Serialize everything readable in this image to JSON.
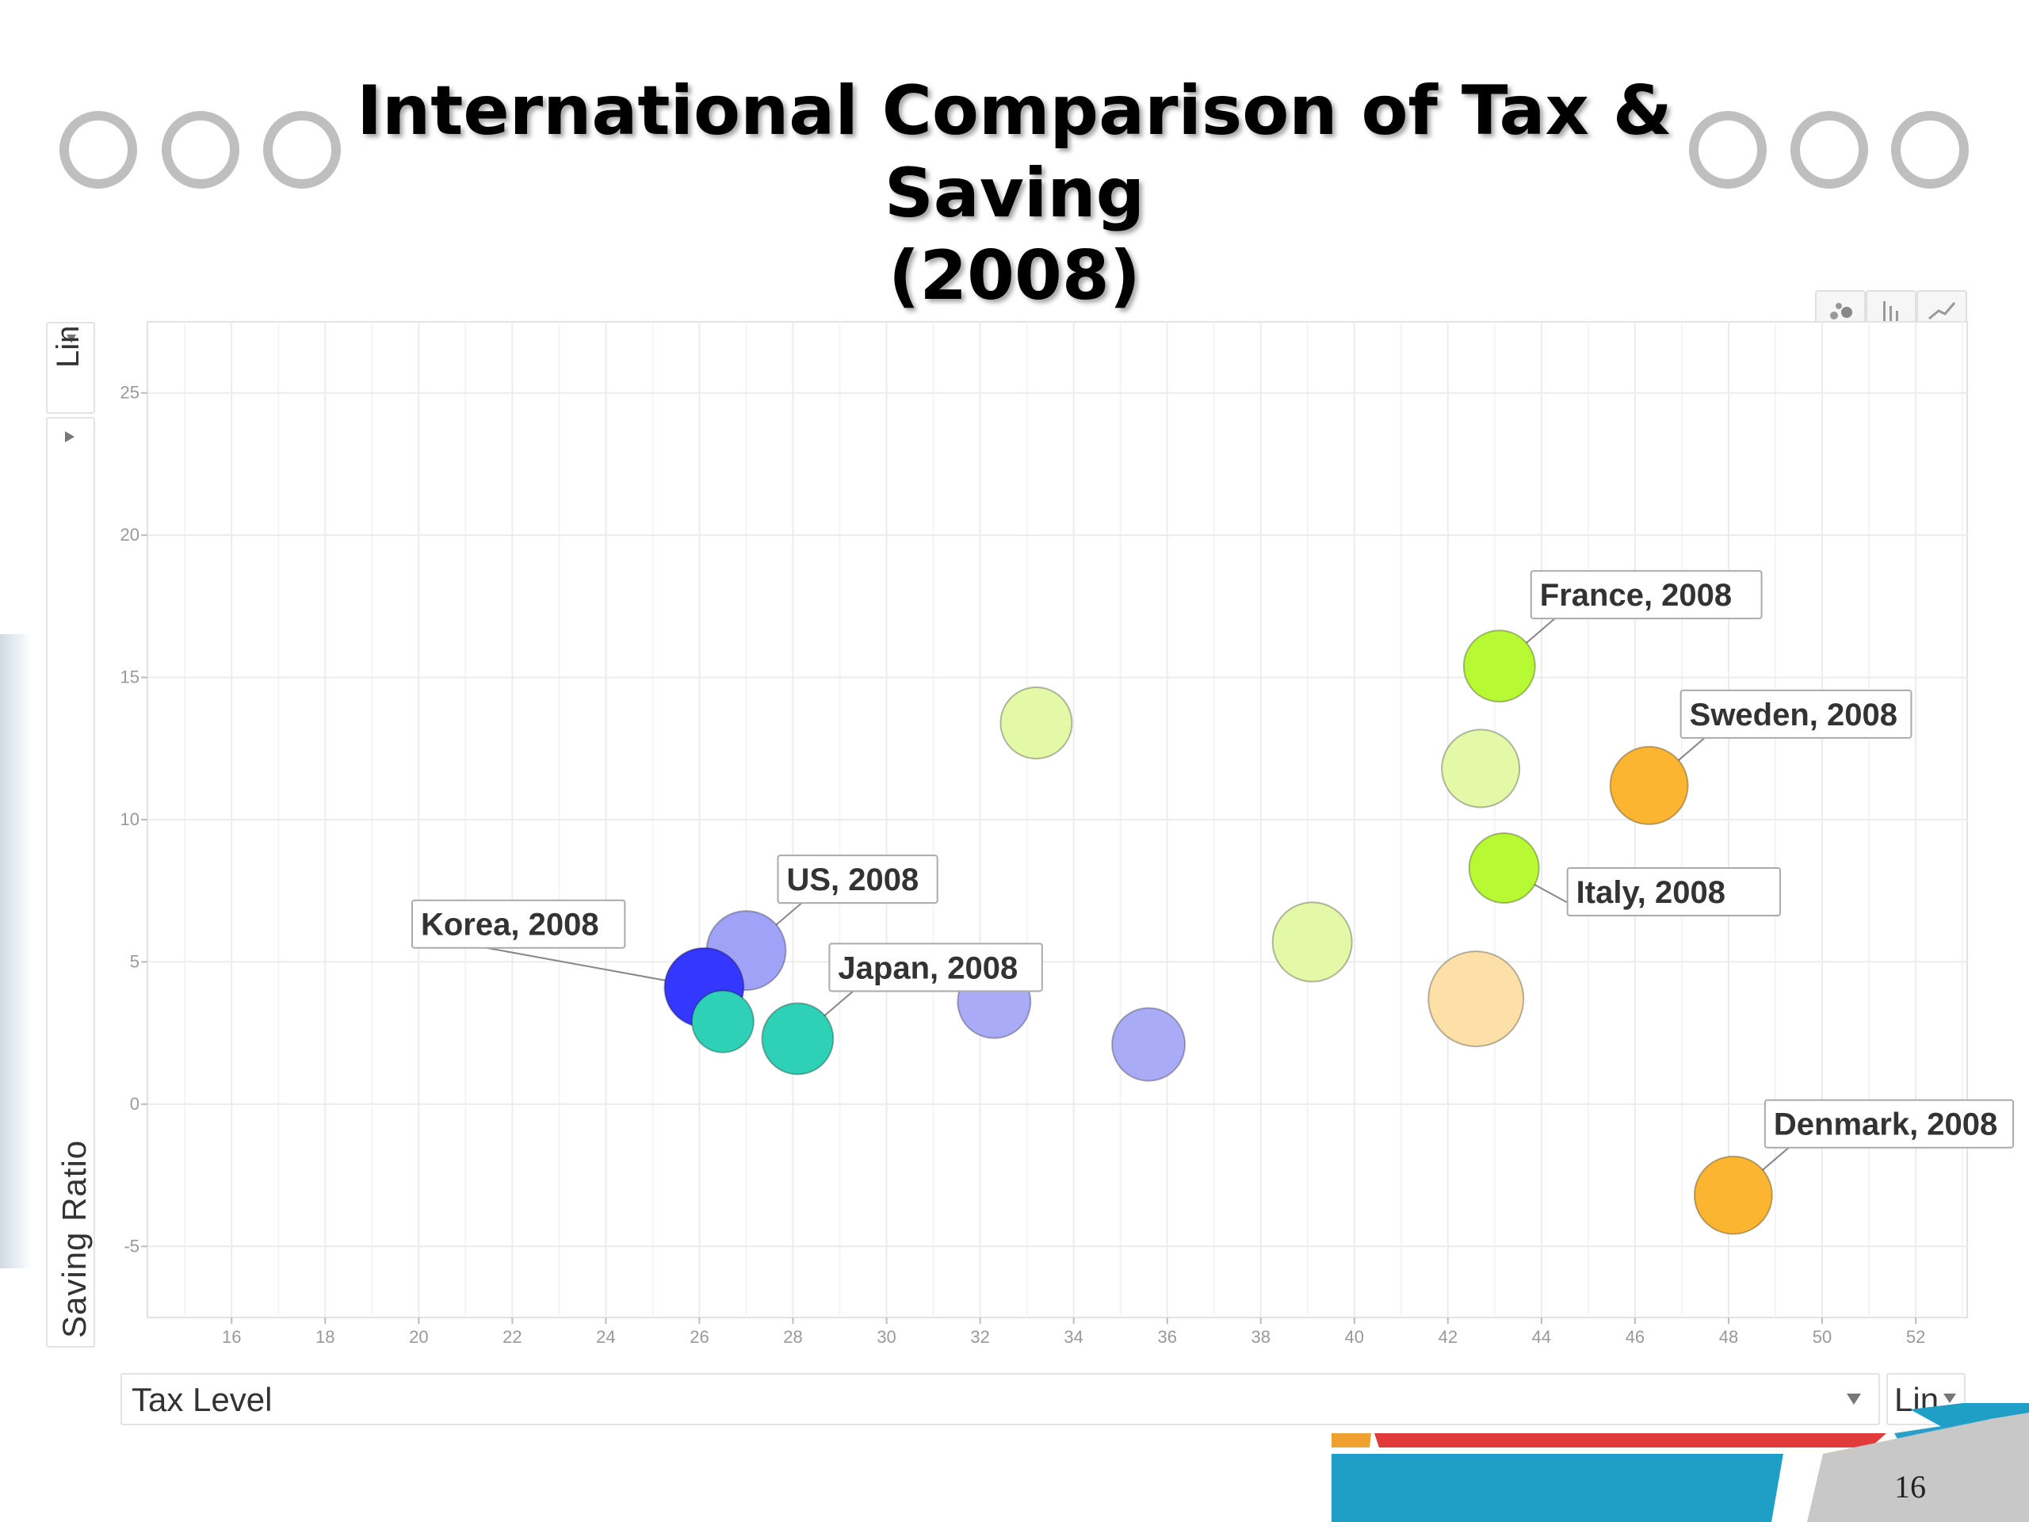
{
  "slide": {
    "title_line1": "International Comparison of Tax & Saving",
    "title_line2": "(2008)",
    "page_number": "16"
  },
  "controls": {
    "y_scale": "Lin",
    "y_axis_label": "Saving Ratio",
    "x_axis_label": "Tax Level",
    "x_scale": "Lin"
  },
  "chart_data": {
    "type": "scatter",
    "xlabel": "Tax Level",
    "ylabel": "Saving Ratio",
    "xlim": [
      14.2,
      53.1
    ],
    "ylim": [
      -7.5,
      27.5
    ],
    "xticks": [
      16,
      18,
      20,
      22,
      24,
      26,
      28,
      30,
      32,
      34,
      36,
      38,
      40,
      42,
      44,
      46,
      48,
      50,
      52
    ],
    "yticks": [
      -5,
      0,
      5,
      10,
      15,
      20,
      25
    ],
    "grid": true,
    "points": [
      {
        "x": 27.0,
        "y": 5.4,
        "size": 1.0,
        "color": "#9fa2f6",
        "label": "US, 2008",
        "label_side": "up-right"
      },
      {
        "x": 26.1,
        "y": 4.1,
        "size": 1.0,
        "color": "#3438ff",
        "label": "Korea, 2008",
        "label_side": "up-left"
      },
      {
        "x": 26.5,
        "y": 2.9,
        "size": 0.78,
        "color": "#2ed1b5",
        "label": ""
      },
      {
        "x": 28.1,
        "y": 2.3,
        "size": 0.9,
        "color": "#2ed1b5",
        "label": "Japan, 2008",
        "label_side": "up-right"
      },
      {
        "x": 32.3,
        "y": 3.6,
        "size": 0.92,
        "color": "#a9abf6",
        "label": ""
      },
      {
        "x": 35.6,
        "y": 2.1,
        "size": 0.92,
        "color": "#a9abf6",
        "label": ""
      },
      {
        "x": 33.2,
        "y": 13.4,
        "size": 0.9,
        "color": "#e4f9a8",
        "label": ""
      },
      {
        "x": 39.1,
        "y": 5.7,
        "size": 1.0,
        "color": "#e4f9a8",
        "label": ""
      },
      {
        "x": 42.6,
        "y": 3.7,
        "size": 1.2,
        "color": "#fde0a8",
        "label": ""
      },
      {
        "x": 42.7,
        "y": 11.8,
        "size": 0.98,
        "color": "#e4f9a8",
        "label": ""
      },
      {
        "x": 43.1,
        "y": 15.4,
        "size": 0.9,
        "color": "#b7f932",
        "label": "France, 2008",
        "label_side": "up-right"
      },
      {
        "x": 43.2,
        "y": 8.3,
        "size": 0.88,
        "color": "#b7f932",
        "label": "Italy, 2008",
        "label_side": "right"
      },
      {
        "x": 46.3,
        "y": 11.2,
        "size": 0.98,
        "color": "#fbb531",
        "label": "Sweden, 2008",
        "label_side": "up-right"
      },
      {
        "x": 48.1,
        "y": -3.2,
        "size": 0.98,
        "color": "#fbb531",
        "label": "Denmark, 2008",
        "label_side": "up-right"
      }
    ]
  }
}
